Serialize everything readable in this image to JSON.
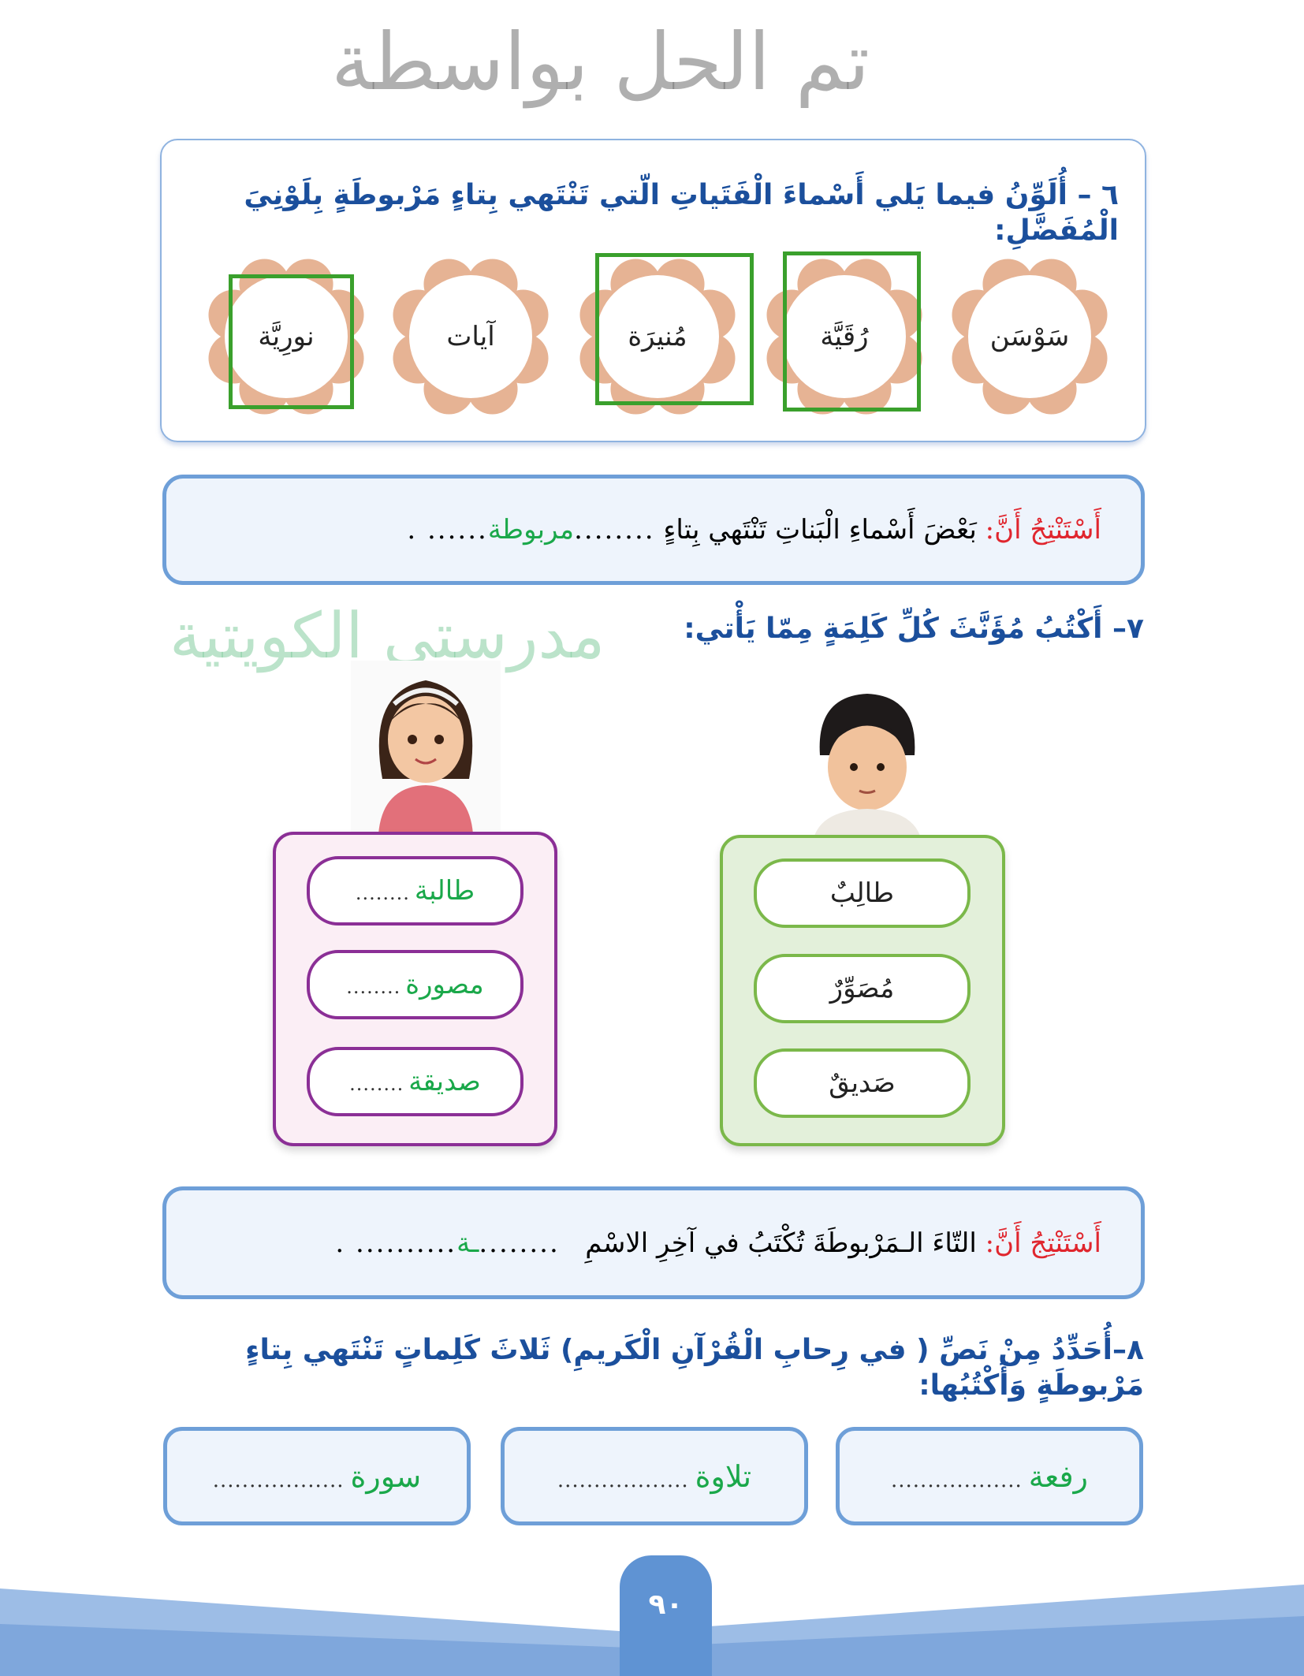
{
  "q6": {
    "title": "٦ – أُلَوِّنُ فيما يَلي أَسْماءَ الْفَتَياتِ الّتي تَنْتَهي بِتاءٍ مَرْبوطَةٍ بِلَوْنِيَ الْمُفَضَّلِ:",
    "flowers": [
      "سَوْسَن",
      "رُقَيَّة",
      "مُنيرَة",
      "آيات",
      "نورِيَّة"
    ],
    "marked": [
      "رُقَيَّة",
      "مُنيرَة",
      "نورِيَّة"
    ]
  },
  "conclusion1": {
    "lead": "أَسْتَنْتِجُ أَنَّ:",
    "text": "بَعْضَ أَسْماءِ الْبَناتِ تَنْتَهي بِتاءٍ",
    "dots_before": "........",
    "answer": "مربوطة",
    "dots_after": "...... ."
  },
  "q7": {
    "title": "٧– أَكْتُبُ مُؤَنَّثَ كُلِّ كَلِمَةٍ مِمّا يَأْتي:",
    "masculine": [
      "طالِبٌ",
      "مُصَوِّرٌ",
      "صَديقٌ"
    ],
    "feminine_answers": [
      "طالبة",
      "مصورة",
      "صديقة"
    ],
    "dots": "........"
  },
  "watermark": {
    "line1": "تم الحل بواسطة",
    "line2": "مدرستي الكويتية"
  },
  "conclusion2": {
    "lead": "أَسْتَنْتِجُ أَنَّ:",
    "text": "التّاءَ الـمَرْبوطَةَ تُكْتَبُ في آخِرِ الاسْمِ",
    "dots_before": "........",
    "answer": "ـة",
    "dots_after": ".......... ."
  },
  "q8": {
    "title": "٨–أُحَدِّدُ مِنْ نَصِّ ( في رِحابِ الْقُرْآنِ الْكَريمِ) ثَلاثَ كَلِماتٍ تَنْتَهي بِتاءٍ مَرْبوطَةٍ وَأَكْتُبُها:",
    "answers": [
      "رفعة",
      "تلاوة",
      "سورة"
    ],
    "dots": ".................."
  },
  "page_number": "٩٠",
  "colors": {
    "title": "#1b4f9c",
    "harakat": "#e0267a",
    "answer": "#1aa84a",
    "border": "#6e9fd8",
    "mark": "#3aa02c"
  }
}
